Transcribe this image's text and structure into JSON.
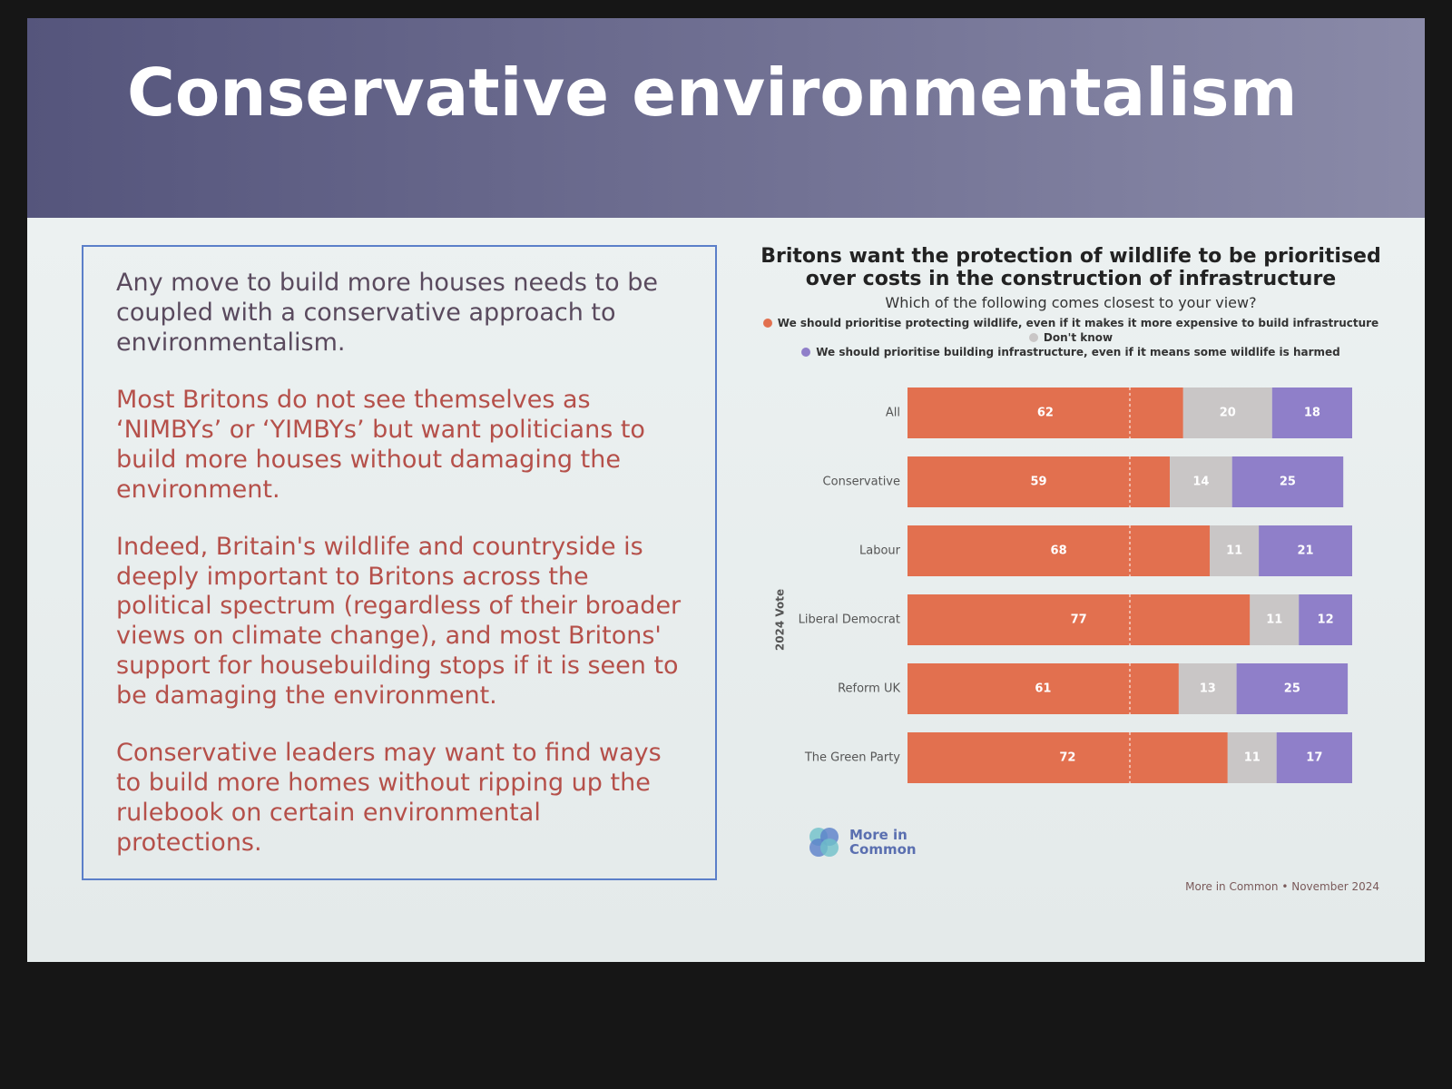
{
  "slide_title": "Conservative environmentalism",
  "paragraphs": [
    "Any move to build more houses needs to be coupled with a conservative approach to environmentalism.",
    "Most Britons do not see themselves as ‘NIMBYs’ or ‘YIMBYs’ but want politicians to build more houses without damaging the environment.",
    "Indeed, Britain's wildlife and countryside is deeply important to Britons across the political spectrum (regardless of their broader views on climate change), and most Britons' support for housebuilding stops if it is seen to be damaging the environment.",
    "Conservative leaders may want to find ways to build more homes without ripping up the rulebook on certain environmental protections."
  ],
  "logo": "More in Common",
  "chart_data": {
    "type": "stacked_barh",
    "title": "Britons want the protection of wildlife to be prioritised over costs in the construction of infrastructure",
    "subtitle": "Which of the following comes closest to your view?",
    "y_label": "2024 Vote",
    "source": "More in Common • November 2024",
    "categories": [
      "All",
      "Conservative",
      "Labour",
      "Liberal Democrat",
      "Reform UK",
      "The Green Party"
    ],
    "series": [
      {
        "name": "We should prioritise protecting wildlife, even if it makes it more expensive to build infrastructure",
        "color": "#e2704f",
        "values": [
          62,
          59,
          68,
          77,
          61,
          72
        ]
      },
      {
        "name": "Don't know",
        "color": "#c9c6c6",
        "values": [
          20,
          14,
          11,
          11,
          13,
          11
        ]
      },
      {
        "name": "We should prioritise building infrastructure, even if it means some wildlife is harmed",
        "color": "#8f7fc9",
        "values": [
          18,
          25,
          21,
          12,
          25,
          17
        ]
      }
    ],
    "xlim": [
      0,
      100
    ],
    "midline": 50
  }
}
